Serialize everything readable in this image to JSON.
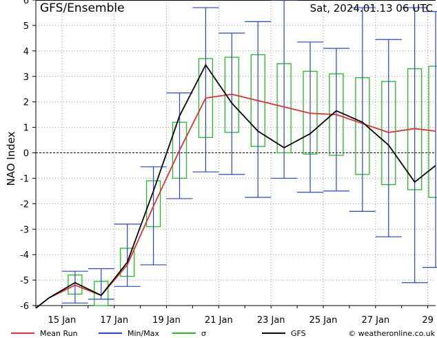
{
  "chart_data": {
    "type": "line",
    "title": "GFS/Ensemble",
    "timestamp": "Sat, 2024.01.13  06 UTC",
    "ylabel": "NAO Index",
    "ylim": [
      -6,
      6
    ],
    "xlim": [
      14,
      29.3
    ],
    "yticks": [
      -6,
      -5,
      -4,
      -3,
      -2,
      -1,
      0,
      1,
      2,
      3,
      4,
      5,
      6
    ],
    "xticks": [
      {
        "x": 15,
        "label": "15 Jan"
      },
      {
        "x": 17,
        "label": "17 Jan"
      },
      {
        "x": 19,
        "label": "19 Jan"
      },
      {
        "x": 21,
        "label": "21 Jan"
      },
      {
        "x": 23,
        "label": "23 Jan"
      },
      {
        "x": 25,
        "label": "25 Jan"
      },
      {
        "x": 27,
        "label": "27 Jan"
      },
      {
        "x": 29,
        "label": "29"
      }
    ],
    "grid": true,
    "zero_line": true,
    "x": [
      14,
      14.5,
      15.5,
      16.5,
      17.5,
      18.5,
      19.5,
      20.5,
      21.5,
      22.5,
      23.5,
      24.5,
      25.5,
      26.5,
      27.5,
      28.5,
      29.3
    ],
    "series": [
      {
        "name": "Mean Run",
        "color": "#e03030",
        "values": [
          -6.1,
          -5.7,
          -5.2,
          -5.6,
          -4.4,
          -2.1,
          0.1,
          2.15,
          2.3,
          2.05,
          1.8,
          1.55,
          1.5,
          1.15,
          0.8,
          0.95,
          0.85
        ]
      },
      {
        "name": "GFS",
        "color": "#000000",
        "values": [
          -6.1,
          -5.7,
          -5.1,
          -5.6,
          -4.3,
          -1.5,
          1.45,
          3.45,
          1.95,
          0.85,
          0.2,
          0.75,
          1.65,
          1.2,
          0.3,
          -1.15,
          -0.5
        ]
      }
    ],
    "minmax": {
      "name": "Min/Max",
      "color": "#2244dd",
      "x": [
        15.5,
        16.5,
        17.5,
        18.5,
        19.5,
        20.5,
        21.5,
        22.5,
        23.5,
        24.5,
        25.5,
        26.5,
        27.5,
        28.5,
        29.3
      ],
      "min": [
        -5.9,
        -5.75,
        -5.25,
        -4.4,
        -1.8,
        -0.75,
        -0.85,
        -1.75,
        -1.0,
        -1.55,
        -1.5,
        -2.3,
        -3.3,
        -5.1,
        -4.5
      ],
      "max": [
        -4.65,
        -4.55,
        -2.8,
        -0.55,
        2.35,
        5.7,
        4.7,
        5.15,
        6.0,
        4.35,
        4.1,
        5.7,
        4.45,
        5.7,
        5.55
      ]
    },
    "sigma": {
      "name": "σ",
      "color": "#22bb22",
      "x": [
        15.5,
        16.5,
        17.5,
        18.5,
        19.5,
        20.5,
        21.5,
        22.5,
        23.5,
        24.5,
        25.5,
        26.5,
        27.5,
        28.5,
        29.3
      ],
      "low": [
        -5.55,
        -6.0,
        -4.85,
        -2.9,
        -1.0,
        0.6,
        0.8,
        0.25,
        0.0,
        -0.05,
        -0.1,
        -0.85,
        -1.25,
        -1.45,
        -1.75
      ],
      "high": [
        -4.8,
        -5.05,
        -3.75,
        -1.1,
        1.2,
        3.7,
        3.75,
        3.85,
        3.5,
        3.2,
        3.1,
        2.95,
        2.8,
        3.3,
        3.4
      ]
    },
    "legend": [
      {
        "name": "Mean Run",
        "color": "#e03030"
      },
      {
        "name": "Min/Max",
        "color": "#2244dd"
      },
      {
        "name": "σ",
        "color": "#22bb22"
      },
      {
        "name": "GFS",
        "color": "#000000"
      }
    ],
    "credit": "© weatheronline.co.uk"
  }
}
